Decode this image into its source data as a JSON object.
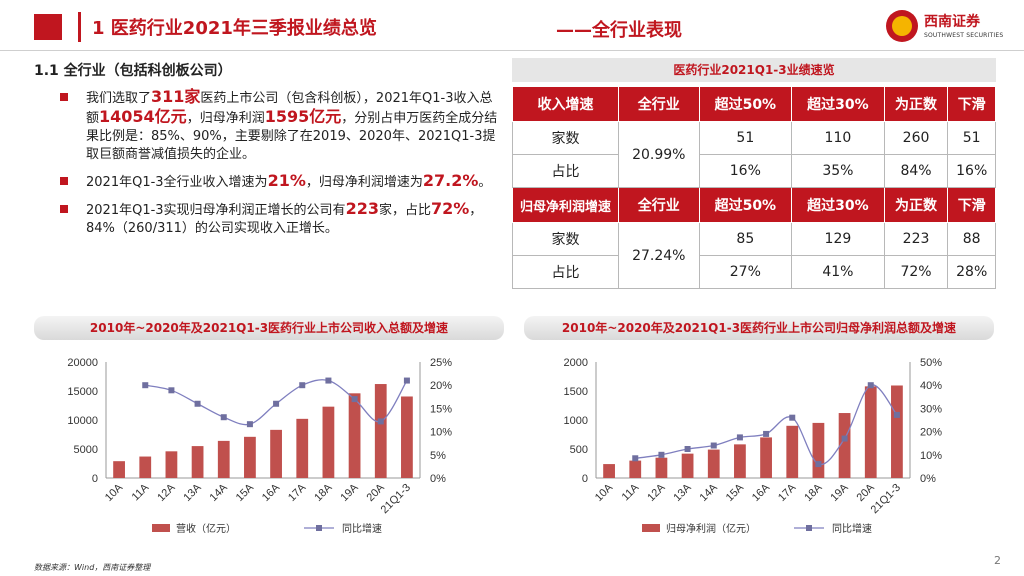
{
  "header": {
    "title": "1 医药行业2021年三季报业绩总览",
    "section": "——全行业表现",
    "logo_cn": "西南证券",
    "logo_en": "SOUTHWEST SECURITIES"
  },
  "subheading": "1.1 全行业（包括科创板公司）",
  "bullets": {
    "b1": {
      "p1": "我们选取了",
      "h1": "311家",
      "p2": "医药上市公司（包含科创板），2021年Q1-3收入总额",
      "h2": "14054亿元",
      "p3": "，归母净利润",
      "h3": "1595亿元",
      "p4": "，分别占申万医药全成分结果比例是：85%、90%，主要剔除了在2019、2020年、2021Q1-3提取巨额商誉减值损失的企业。"
    },
    "b2": {
      "p1": "2021年Q1-3全行业收入增速为",
      "h1": "21%",
      "p2": "，归母净利润增速为",
      "h2": "27.2%",
      "p3": "。"
    },
    "b3": {
      "p1": "2021年Q1-3实现归母净利润正增长的公司有",
      "h1": "223",
      "p2": "家，占比",
      "h2": "72%",
      "p3": "，84%（260/311）的公司实现收入正增长。"
    }
  },
  "table": {
    "title": "医药行业2021Q1-3业绩速览",
    "rev_header": [
      "收入增速",
      "全行业",
      "超过50%",
      "超过30%",
      "为正数",
      "下滑"
    ],
    "rev_count": {
      "label": "家数",
      "values": [
        "51",
        "110",
        "260",
        "51"
      ]
    },
    "rev_ratio": {
      "label": "占比",
      "values": [
        "16%",
        "35%",
        "84%",
        "16%"
      ]
    },
    "rev_all": "20.99%",
    "np_header": [
      "归母净利润增速",
      "全行业",
      "超过50%",
      "超过30%",
      "为正数",
      "下滑"
    ],
    "np_count": {
      "label": "家数",
      "values": [
        "85",
        "129",
        "223",
        "88"
      ]
    },
    "np_ratio": {
      "label": "占比",
      "values": [
        "27%",
        "41%",
        "72%",
        "28%"
      ]
    },
    "np_all": "27.24%"
  },
  "chart_data": [
    {
      "type": "bar",
      "title": "2010年~2020年及2021Q1-3医药行业上市公司收入总额及增速",
      "categories": [
        "10A",
        "11A",
        "12A",
        "13A",
        "14A",
        "15A",
        "16A",
        "17A",
        "18A",
        "19A",
        "20A",
        "21Q1-3"
      ],
      "series": [
        {
          "name": "营收（亿元）",
          "type": "bar",
          "axis": "left",
          "values": [
            2900,
            3700,
            4600,
            5500,
            6400,
            7100,
            8300,
            10200,
            12300,
            14600,
            16200,
            14054
          ]
        },
        {
          "name": "同比增速",
          "type": "line",
          "axis": "right",
          "values": [
            null,
            20.0,
            18.9,
            16.0,
            13.1,
            11.6,
            16.0,
            20.0,
            21.0,
            17.0,
            12.2,
            21.0
          ]
        }
      ],
      "ylim_left": [
        0,
        20000
      ],
      "ylim_right": [
        0,
        25
      ],
      "left_ticks": [
        "0",
        "5000",
        "10000",
        "15000",
        "20000"
      ],
      "right_ticks": [
        "0%",
        "5%",
        "10%",
        "15%",
        "20%",
        "25%"
      ]
    },
    {
      "type": "bar",
      "title": "2010年~2020年及2021Q1-3医药行业上市公司归母净利润总额及增速",
      "categories": [
        "10A",
        "11A",
        "12A",
        "13A",
        "14A",
        "15A",
        "16A",
        "17A",
        "18A",
        "19A",
        "20A",
        "21Q1-3"
      ],
      "series": [
        {
          "name": "归母净利润（亿元）",
          "type": "bar",
          "axis": "left",
          "values": [
            240,
            300,
            350,
            420,
            490,
            580,
            700,
            900,
            950,
            1120,
            1580,
            1595
          ]
        },
        {
          "name": "同比增速",
          "type": "line",
          "axis": "right",
          "values": [
            null,
            8.5,
            10.0,
            12.5,
            14.0,
            17.5,
            19.0,
            26.0,
            6.0,
            17.0,
            40.0,
            27.2
          ]
        }
      ],
      "ylim_left": [
        0,
        2000
      ],
      "ylim_right": [
        0,
        50
      ],
      "left_ticks": [
        "0",
        "500",
        "1000",
        "1500",
        "2000"
      ],
      "right_ticks": [
        "0%",
        "10%",
        "20%",
        "30%",
        "40%",
        "50%"
      ]
    }
  ],
  "colors": {
    "accent": "#c0161f",
    "bar": "#c0504d",
    "line": "#7f7fbf",
    "marker": "#6f6f9f"
  },
  "footer": {
    "source": "数据来源：Wind，西南证券整理",
    "page": "2"
  }
}
